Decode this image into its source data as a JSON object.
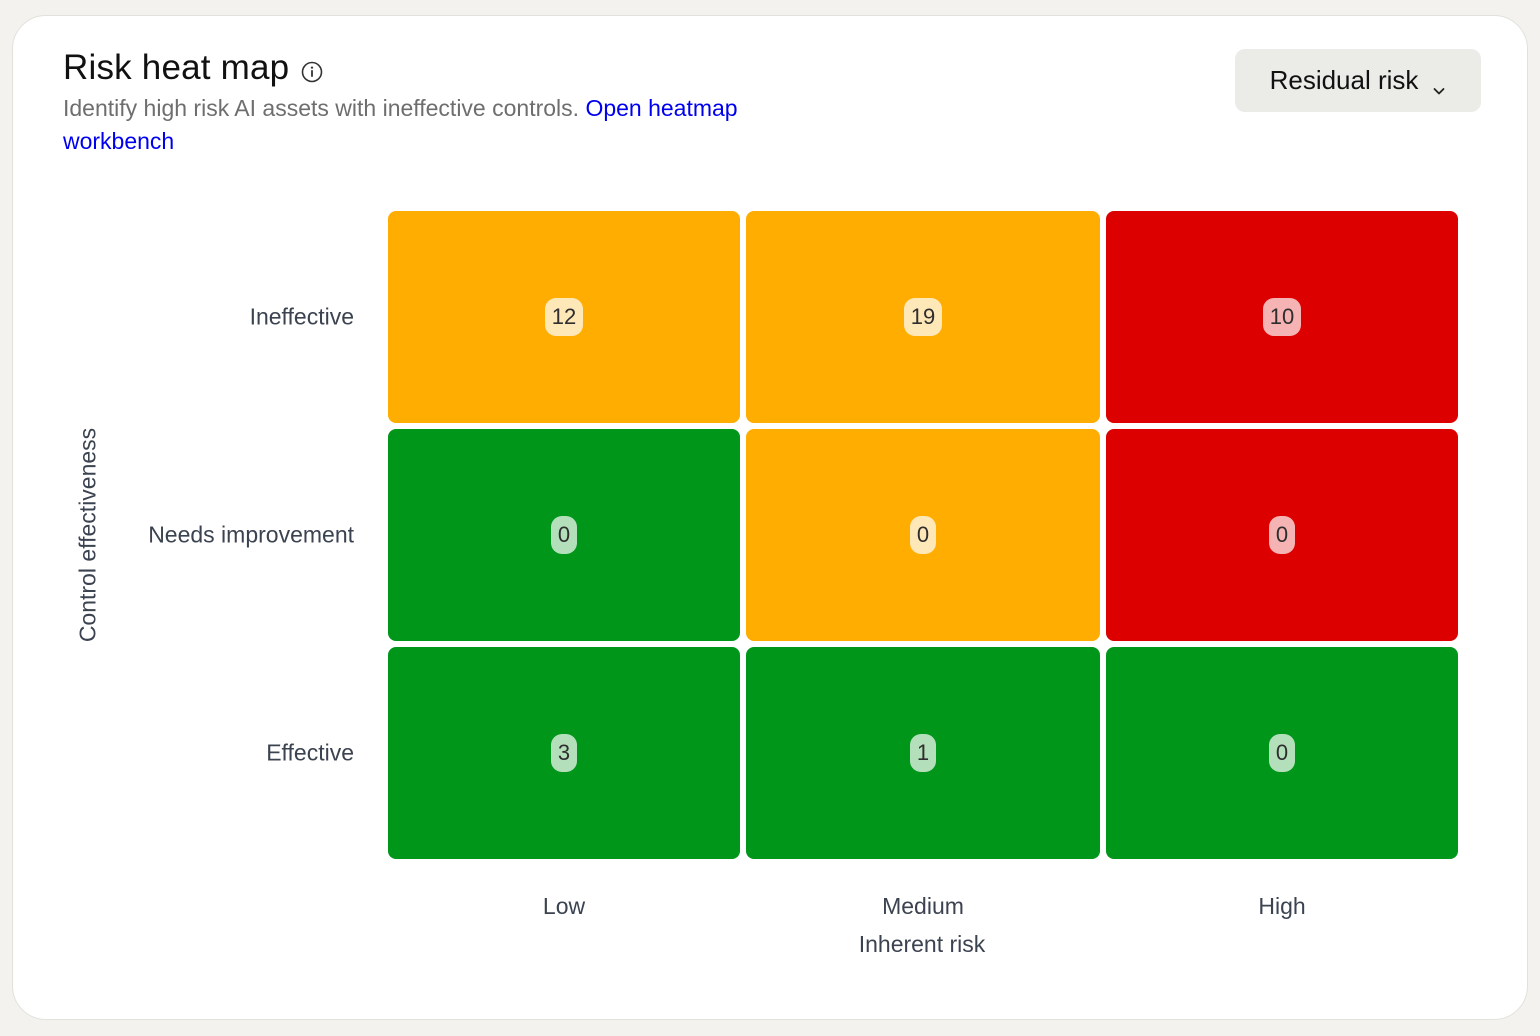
{
  "header": {
    "title": "Risk heat map",
    "subtitle": "Identify high risk AI assets with ineffective controls.",
    "link_label": "Open heatmap workbench",
    "info_icon": "info-icon"
  },
  "dropdown": {
    "selected": "Residual risk",
    "icon": "chevron-down-icon"
  },
  "heatmap": {
    "y_axis_title": "Control effectiveness",
    "x_axis_title": "Inherent risk",
    "rows": [
      "Ineffective",
      "Needs improvement",
      "Effective"
    ],
    "columns": [
      "Low",
      "Medium",
      "High"
    ],
    "colors": {
      "orange": "#ffad00",
      "red": "#dc0000",
      "green": "#00961a"
    },
    "cells": [
      [
        {
          "value": "12",
          "level": "orange"
        },
        {
          "value": "19",
          "level": "orange"
        },
        {
          "value": "10",
          "level": "red"
        }
      ],
      [
        {
          "value": "0",
          "level": "green"
        },
        {
          "value": "0",
          "level": "orange"
        },
        {
          "value": "0",
          "level": "red"
        }
      ],
      [
        {
          "value": "3",
          "level": "green"
        },
        {
          "value": "1",
          "level": "green"
        },
        {
          "value": "0",
          "level": "green"
        }
      ]
    ]
  }
}
